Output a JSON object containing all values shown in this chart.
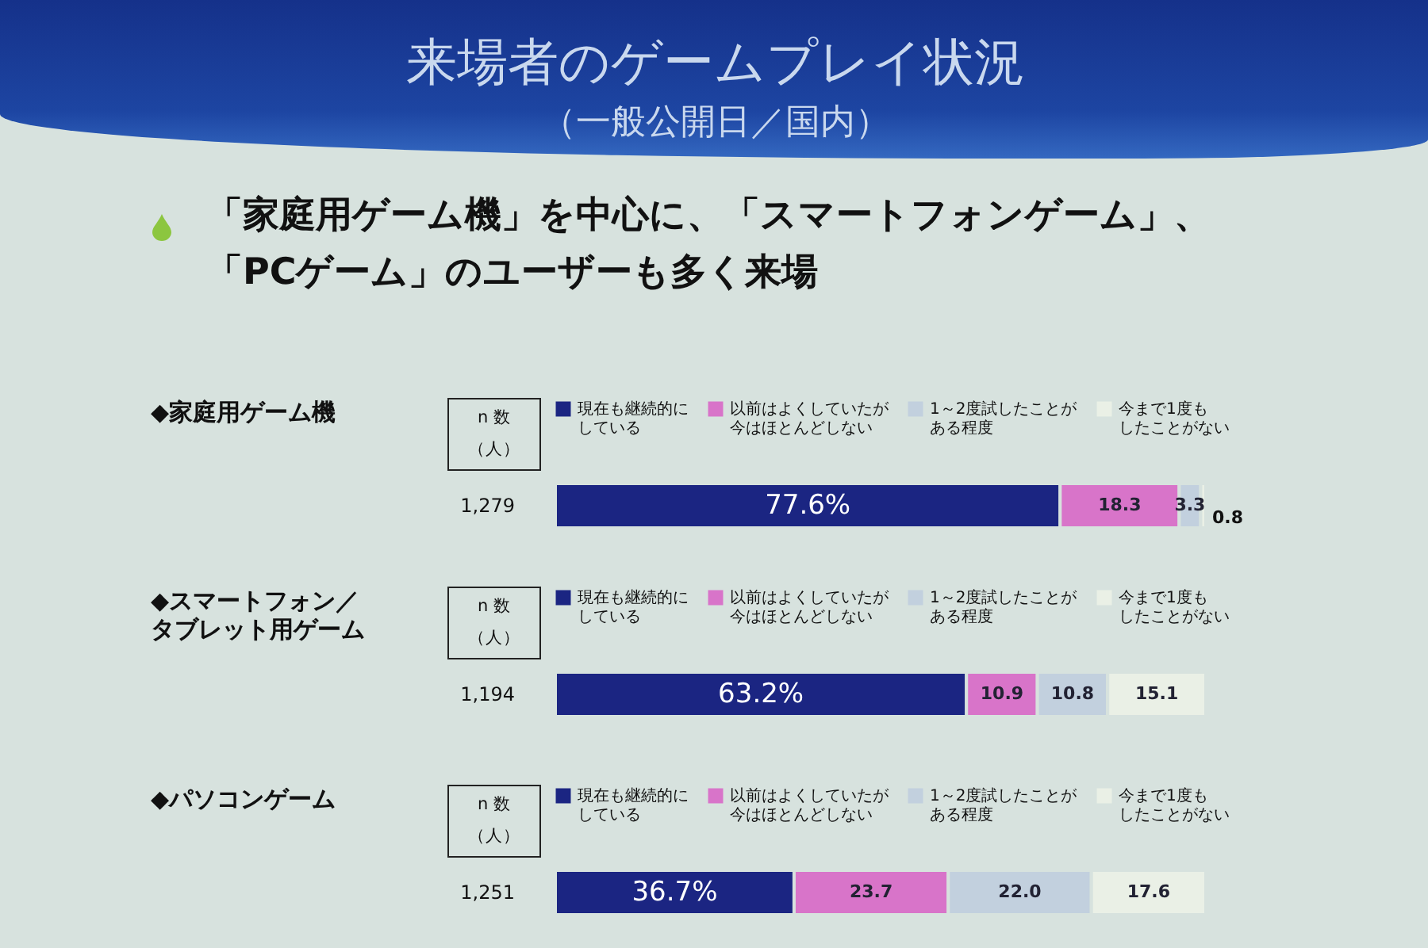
{
  "chart_data": [
    {
      "type": "other",
      "title": "来場者のゲームプレイ状況",
      "subtitle": "（一般公開日／国内）",
      "annotations": [
        "「家庭用ゲーム機」を中心に、「スマートフォンゲーム」、「PCゲーム」のユーザーも多く来場"
      ]
    },
    {
      "type": "bar",
      "orientation": "horizontal",
      "stacked": true,
      "title": "◆家庭用ゲーム機",
      "ylabel": "n 数（人）",
      "categories": [
        "1,279"
      ],
      "legend": "top",
      "series": [
        {
          "name": "現在も継続的にしている",
          "color": "#1b2582",
          "values": [
            77.6
          ],
          "value_labels": [
            "77.6%"
          ]
        },
        {
          "name": "以前はよくしていたが今はほとんどしない",
          "color": "#d874c9",
          "values": [
            18.3
          ],
          "value_labels": [
            "18.3"
          ]
        },
        {
          "name": "1～2度試したことがある程度",
          "color": "#c2d0de",
          "values": [
            3.3
          ],
          "value_labels": [
            "3.3"
          ]
        },
        {
          "name": "今まで1度もしたことがない",
          "color": "#eaf0e6",
          "values": [
            0.8
          ],
          "value_labels": [
            "0.8"
          ]
        }
      ]
    },
    {
      "type": "bar",
      "orientation": "horizontal",
      "stacked": true,
      "title": "◆スマートフォン／タブレット用ゲーム",
      "ylabel": "n 数（人）",
      "categories": [
        "1,194"
      ],
      "legend": "top",
      "series": [
        {
          "name": "現在も継続的にしている",
          "color": "#1b2582",
          "values": [
            63.2
          ],
          "value_labels": [
            "63.2%"
          ]
        },
        {
          "name": "以前はよくしていたが今はほとんどしない",
          "color": "#d874c9",
          "values": [
            10.9
          ],
          "value_labels": [
            "10.9"
          ]
        },
        {
          "name": "1～2度試したことがある程度",
          "color": "#c2d0de",
          "values": [
            10.8
          ],
          "value_labels": [
            "10.8"
          ]
        },
        {
          "name": "今まで1度もしたことがない",
          "color": "#eaf0e6",
          "values": [
            15.1
          ],
          "value_labels": [
            "15.1"
          ]
        }
      ]
    },
    {
      "type": "bar",
      "orientation": "horizontal",
      "stacked": true,
      "title": "◆パソコンゲーム",
      "ylabel": "n 数（人）",
      "categories": [
        "1,251"
      ],
      "legend": "top",
      "series": [
        {
          "name": "現在も継続的にしている",
          "color": "#1b2582",
          "values": [
            36.7
          ],
          "value_labels": [
            "36.7%"
          ]
        },
        {
          "name": "以前はよくしていたが今はほとんどしない",
          "color": "#d874c9",
          "values": [
            23.7
          ],
          "value_labels": [
            "23.7"
          ]
        },
        {
          "name": "1～2度試したことがある程度",
          "color": "#c2d0de",
          "values": [
            22.0
          ],
          "value_labels": [
            "22.0"
          ]
        },
        {
          "name": "今まで1度もしたことがない",
          "color": "#eaf0e6",
          "values": [
            17.6
          ],
          "value_labels": [
            "17.6"
          ]
        }
      ]
    }
  ]
}
